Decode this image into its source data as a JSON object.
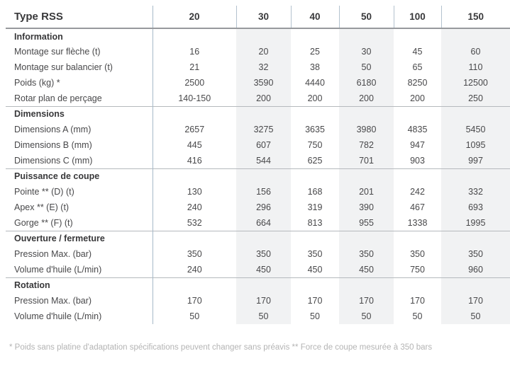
{
  "table": {
    "title": "Type RSS",
    "columns": [
      "20",
      "30",
      "40",
      "50",
      "100",
      "150"
    ],
    "sections": [
      {
        "label": "Information",
        "rows": [
          {
            "label": "Montage sur flèche (t)",
            "values": [
              "16",
              "20",
              "25",
              "30",
              "45",
              "60"
            ]
          },
          {
            "label": "Montage sur balancier (t)",
            "values": [
              "21",
              "32",
              "38",
              "50",
              "65",
              "110"
            ]
          },
          {
            "label": "Poids (kg) *",
            "values": [
              "2500",
              "3590",
              "4440",
              "6180",
              "8250",
              "12500"
            ]
          },
          {
            "label": "Rotar plan de perçage",
            "values": [
              "140-150",
              "200",
              "200",
              "200",
              "200",
              "250"
            ]
          }
        ]
      },
      {
        "label": "Dimensions",
        "rows": [
          {
            "label": "Dimensions A (mm)",
            "values": [
              "2657",
              "3275",
              "3635",
              "3980",
              "4835",
              "5450"
            ]
          },
          {
            "label": "Dimensions B (mm)",
            "values": [
              "445",
              "607",
              "750",
              "782",
              "947",
              "1095"
            ]
          },
          {
            "label": "Dimensions C (mm)",
            "values": [
              "416",
              "544",
              "625",
              "701",
              "903",
              "997"
            ]
          }
        ]
      },
      {
        "label": "Puissance de coupe",
        "rows": [
          {
            "label": "Pointe ** (D) (t)",
            "values": [
              "130",
              "156",
              "168",
              "201",
              "242",
              "332"
            ]
          },
          {
            "label": "Apex ** (E) (t)",
            "values": [
              "240",
              "296",
              "319",
              "390",
              "467",
              "693"
            ]
          },
          {
            "label": "Gorge ** (F) (t)",
            "values": [
              "532",
              "664",
              "813",
              "955",
              "1338",
              "1995"
            ]
          }
        ]
      },
      {
        "label": "Ouverture / fermeture",
        "rows": [
          {
            "label": "Pression Max. (bar)",
            "values": [
              "350",
              "350",
              "350",
              "350",
              "350",
              "350"
            ]
          },
          {
            "label": "Volume d'huile (L/min)",
            "values": [
              "240",
              "450",
              "450",
              "450",
              "750",
              "960"
            ]
          }
        ]
      },
      {
        "label": "Rotation",
        "rows": [
          {
            "label": "Pression Max. (bar)",
            "values": [
              "170",
              "170",
              "170",
              "170",
              "170",
              "170"
            ]
          },
          {
            "label": "Volume d'huile (L/min)",
            "values": [
              "50",
              "50",
              "50",
              "50",
              "50",
              "50"
            ]
          }
        ]
      }
    ]
  },
  "footnote": "* Poids sans platine d'adaptation spécifications peuvent changer sans préavis ** Force de coupe mesurée à 350 bars",
  "colors": {
    "divider_accent": "#a7b9c8",
    "header_divider": "#b3c2ce",
    "column_band": "#f1f2f3",
    "header_rule": "#97999d",
    "section_rule": "#b5b9bd",
    "text": "#48484a",
    "bold_text": "#38383a",
    "footnote_text": "#b4b4b4"
  }
}
